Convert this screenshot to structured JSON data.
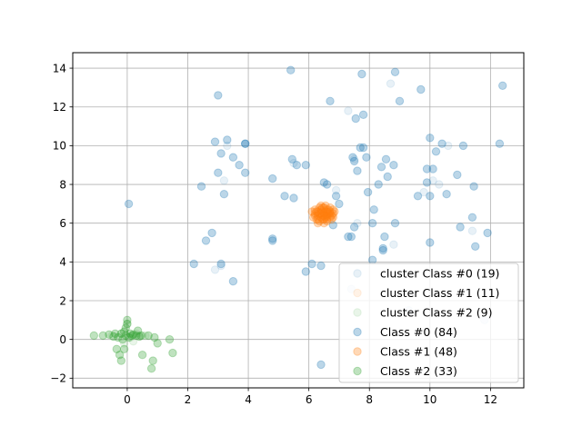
{
  "chart_data": {
    "type": "scatter",
    "title": "",
    "xlabel": "",
    "ylabel": "",
    "xlim": [
      -1.8,
      13.1
    ],
    "ylim": [
      -2.5,
      14.8
    ],
    "xticks": [
      0,
      2,
      4,
      6,
      8,
      10,
      12
    ],
    "yticks": [
      -2,
      0,
      2,
      4,
      6,
      8,
      10,
      12,
      14
    ],
    "grid": true,
    "legend_position": "lower-right",
    "series": [
      {
        "name": "cluster Class #0 (19)",
        "color": "#1f77b4",
        "alpha": 0.1,
        "points": [
          [
            2.9,
            3.6
          ],
          [
            3.1,
            3.8
          ],
          [
            3.2,
            8.2
          ],
          [
            3.3,
            10.0
          ],
          [
            7.3,
            11.8
          ],
          [
            7.5,
            9.3
          ],
          [
            7.6,
            6.0
          ],
          [
            7.4,
            2.6
          ],
          [
            8.7,
            13.2
          ],
          [
            8.8,
            4.9
          ],
          [
            9.3,
            1.5
          ],
          [
            9.8,
            7.6
          ],
          [
            10.1,
            8.2
          ],
          [
            10.3,
            8.0
          ],
          [
            10.6,
            10.0
          ],
          [
            11.4,
            5.6
          ],
          [
            11.8,
            1.0
          ],
          [
            6.9,
            7.7
          ],
          [
            5.5,
            9.1
          ]
        ]
      },
      {
        "name": "cluster Class #1 (11)",
        "color": "#ff7f0e",
        "alpha": 0.1,
        "points": [
          [
            6.2,
            6.6
          ],
          [
            6.3,
            6.3
          ],
          [
            6.4,
            6.7
          ],
          [
            6.5,
            6.2
          ],
          [
            6.6,
            6.5
          ],
          [
            6.7,
            6.6
          ],
          [
            6.3,
            6.5
          ],
          [
            6.5,
            6.8
          ],
          [
            6.8,
            6.4
          ],
          [
            6.4,
            6.4
          ],
          [
            6.6,
            6.3
          ]
        ]
      },
      {
        "name": "cluster Class #2 (9)",
        "color": "#2ca02c",
        "alpha": 0.1,
        "points": [
          [
            -0.5,
            0.2
          ],
          [
            -0.2,
            0.3
          ],
          [
            0.0,
            0.8
          ],
          [
            0.1,
            0.1
          ],
          [
            0.3,
            0.3
          ],
          [
            0.5,
            0.2
          ],
          [
            -0.1,
            -0.2
          ],
          [
            0.2,
            -0.1
          ],
          [
            0.6,
            0.2
          ]
        ]
      },
      {
        "name": "Class #0 (84)",
        "color": "#1f77b4",
        "alpha": 0.3,
        "points": [
          [
            0.05,
            7.0
          ],
          [
            2.2,
            3.9
          ],
          [
            2.45,
            7.9
          ],
          [
            2.6,
            5.1
          ],
          [
            2.8,
            5.5
          ],
          [
            2.9,
            10.2
          ],
          [
            3.0,
            12.6
          ],
          [
            3.0,
            8.6
          ],
          [
            3.1,
            9.6
          ],
          [
            3.2,
            7.5
          ],
          [
            3.1,
            3.9
          ],
          [
            3.3,
            10.3
          ],
          [
            3.5,
            9.4
          ],
          [
            3.5,
            3.0
          ],
          [
            3.7,
            9.0
          ],
          [
            3.9,
            10.1
          ],
          [
            3.9,
            8.6
          ],
          [
            4.8,
            8.3
          ],
          [
            4.8,
            5.2
          ],
          [
            4.8,
            5.1
          ],
          [
            5.2,
            7.4
          ],
          [
            5.4,
            13.9
          ],
          [
            5.45,
            9.3
          ],
          [
            5.5,
            7.3
          ],
          [
            5.6,
            9.0
          ],
          [
            5.9,
            9.0
          ],
          [
            5.9,
            3.5
          ],
          [
            6.1,
            3.9
          ],
          [
            6.4,
            3.8
          ],
          [
            6.5,
            8.1
          ],
          [
            6.6,
            8.0
          ],
          [
            6.8,
            5.9
          ],
          [
            6.9,
            7.4
          ],
          [
            7.0,
            7.0
          ],
          [
            6.4,
            -1.3
          ],
          [
            6.7,
            12.3
          ],
          [
            7.3,
            5.3
          ],
          [
            7.4,
            5.3
          ],
          [
            7.45,
            9.4
          ],
          [
            7.5,
            9.2
          ],
          [
            7.6,
            8.7
          ],
          [
            7.55,
            11.4
          ],
          [
            7.7,
            9.9
          ],
          [
            7.75,
            13.7
          ],
          [
            7.8,
            9.9
          ],
          [
            7.8,
            11.6
          ],
          [
            7.9,
            9.4
          ],
          [
            7.95,
            7.6
          ],
          [
            8.1,
            4.1
          ],
          [
            8.1,
            6.0
          ],
          [
            8.15,
            6.7
          ],
          [
            8.3,
            8.0
          ],
          [
            8.4,
            8.9
          ],
          [
            8.45,
            4.6
          ],
          [
            8.45,
            4.7
          ],
          [
            8.5,
            5.3
          ],
          [
            8.55,
            9.3
          ],
          [
            8.6,
            8.4
          ],
          [
            8.8,
            9.0
          ],
          [
            8.85,
            13.8
          ],
          [
            8.85,
            6.0
          ],
          [
            9.0,
            12.3
          ],
          [
            9.6,
            7.4
          ],
          [
            9.7,
            12.9
          ],
          [
            10.0,
            5.0
          ],
          [
            9.9,
            8.1
          ],
          [
            10.0,
            10.4
          ],
          [
            10.0,
            7.4
          ],
          [
            10.1,
            8.8
          ],
          [
            10.2,
            9.7
          ],
          [
            10.4,
            10.1
          ],
          [
            10.55,
            7.5
          ],
          [
            10.9,
            8.5
          ],
          [
            11.0,
            5.8
          ],
          [
            11.1,
            10.0
          ],
          [
            11.4,
            6.3
          ],
          [
            11.45,
            7.9
          ],
          [
            11.5,
            4.8
          ],
          [
            11.9,
            5.5
          ],
          [
            12.3,
            10.1
          ],
          [
            12.4,
            13.1
          ],
          [
            7.5,
            5.8
          ],
          [
            3.9,
            10.1
          ],
          [
            9.9,
            8.8
          ]
        ]
      },
      {
        "name": "Class #1 (48)",
        "color": "#ff7f0e",
        "alpha": 0.3,
        "points": [
          [
            6.1,
            6.6
          ],
          [
            6.15,
            6.3
          ],
          [
            6.2,
            6.5
          ],
          [
            6.2,
            6.7
          ],
          [
            6.25,
            6.2
          ],
          [
            6.3,
            6.4
          ],
          [
            6.3,
            6.6
          ],
          [
            6.35,
            6.8
          ],
          [
            6.35,
            6.1
          ],
          [
            6.4,
            6.5
          ],
          [
            6.4,
            6.3
          ],
          [
            6.4,
            6.7
          ],
          [
            6.45,
            6.4
          ],
          [
            6.45,
            6.6
          ],
          [
            6.5,
            6.2
          ],
          [
            6.5,
            6.5
          ],
          [
            6.5,
            6.8
          ],
          [
            6.55,
            6.3
          ],
          [
            6.55,
            6.6
          ],
          [
            6.6,
            6.4
          ],
          [
            6.6,
            6.7
          ],
          [
            6.6,
            6.1
          ],
          [
            6.65,
            6.5
          ],
          [
            6.7,
            6.3
          ],
          [
            6.7,
            6.6
          ],
          [
            6.75,
            6.4
          ],
          [
            6.8,
            6.5
          ],
          [
            6.8,
            6.7
          ],
          [
            6.2,
            6.4
          ],
          [
            6.3,
            6.2
          ],
          [
            6.45,
            6.8
          ],
          [
            6.5,
            6.0
          ],
          [
            6.55,
            6.9
          ],
          [
            6.6,
            6.2
          ],
          [
            6.7,
            6.8
          ],
          [
            6.75,
            6.2
          ],
          [
            6.8,
            6.3
          ],
          [
            6.85,
            6.6
          ],
          [
            6.25,
            6.6
          ],
          [
            6.35,
            6.5
          ],
          [
            6.45,
            6.2
          ],
          [
            6.55,
            6.4
          ],
          [
            6.65,
            6.7
          ],
          [
            6.4,
            6.9
          ],
          [
            6.3,
            6.0
          ],
          [
            6.7,
            6.5
          ],
          [
            6.6,
            6.6
          ],
          [
            6.5,
            6.4
          ]
        ]
      },
      {
        "name": "Class #2 (33)",
        "color": "#2ca02c",
        "alpha": 0.3,
        "points": [
          [
            -1.1,
            0.2
          ],
          [
            -0.8,
            0.2
          ],
          [
            -0.6,
            0.25
          ],
          [
            -0.45,
            0.15
          ],
          [
            -0.4,
            0.3
          ],
          [
            -0.35,
            -0.5
          ],
          [
            -0.3,
            0.1
          ],
          [
            -0.25,
            -0.8
          ],
          [
            -0.2,
            0.3
          ],
          [
            -0.15,
            0.0
          ],
          [
            -0.1,
            0.4
          ],
          [
            -0.1,
            -0.5
          ],
          [
            -0.05,
            0.6
          ],
          [
            -0.05,
            0.2
          ],
          [
            0.0,
            0.8
          ],
          [
            0.0,
            1.0
          ],
          [
            0.05,
            0.1
          ],
          [
            0.1,
            0.3
          ],
          [
            0.15,
            0.2
          ],
          [
            0.2,
            0.25
          ],
          [
            0.3,
            0.2
          ],
          [
            0.35,
            0.45
          ],
          [
            0.4,
            0.15
          ],
          [
            0.45,
            0.2
          ],
          [
            0.5,
            -0.8
          ],
          [
            0.7,
            0.2
          ],
          [
            0.8,
            -1.5
          ],
          [
            0.85,
            -1.1
          ],
          [
            0.9,
            0.1
          ],
          [
            1.0,
            -0.2
          ],
          [
            1.4,
            0.0
          ],
          [
            1.5,
            -0.7
          ],
          [
            -0.2,
            -1.1
          ]
        ]
      }
    ]
  }
}
